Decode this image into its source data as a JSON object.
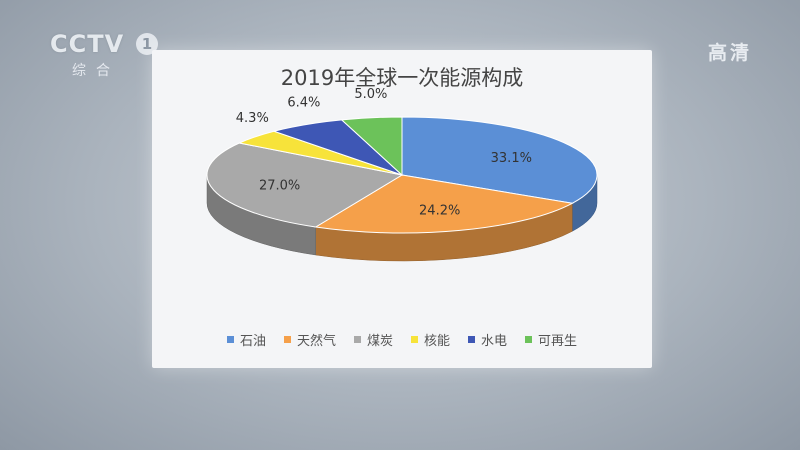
{
  "overlay": {
    "channel_logo": "CCTV",
    "channel_number": "1",
    "channel_sub": "综合",
    "hd_badge": "高清"
  },
  "chart_data": {
    "type": "pie",
    "title": "2019年全球一次能源构成",
    "legend_position": "bottom",
    "series": [
      {
        "name": "石油",
        "value": 33.1,
        "label": "33.1%",
        "color": "#5b8fd6"
      },
      {
        "name": "天然气",
        "value": 24.2,
        "label": "24.2%",
        "color": "#f5a04a"
      },
      {
        "name": "煤炭",
        "value": 27.0,
        "label": "27.0%",
        "color": "#a9a9a9"
      },
      {
        "name": "核能",
        "value": 4.3,
        "label": "4.3%",
        "color": "#f7e33a"
      },
      {
        "name": "水电",
        "value": 6.4,
        "label": "6.4%",
        "color": "#3e57b5"
      },
      {
        "name": "可再生",
        "value": 5.0,
        "label": "5.0%",
        "color": "#6cc25a"
      }
    ]
  }
}
